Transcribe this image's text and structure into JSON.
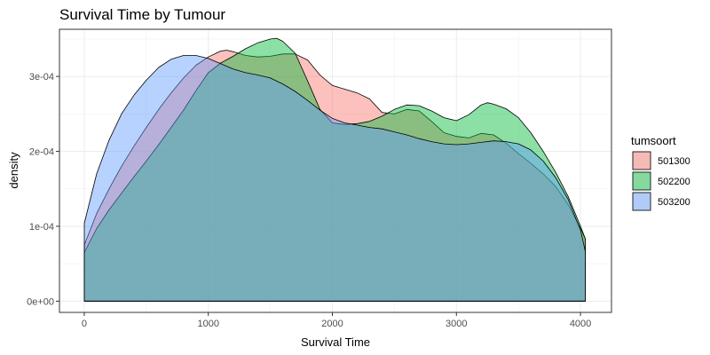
{
  "chart_data": {
    "type": "area",
    "title": "Survival Time by Tumour",
    "xlabel": "Survival Time",
    "ylabel": "density",
    "xlim": [
      -200,
      4250
    ],
    "ylim": [
      -1.5e-05,
      0.000363
    ],
    "x_ticks": [
      0,
      1000,
      2000,
      3000,
      4000
    ],
    "x_tick_labels": [
      "0",
      "1000",
      "2000",
      "3000",
      "4000"
    ],
    "y_ticks": [
      0,
      0.0001,
      0.0002,
      0.0003
    ],
    "y_tick_labels": [
      "0e+00",
      "1e-04",
      "2e-04",
      "3e-04"
    ],
    "grid": true,
    "legend": {
      "title": "tumsoort",
      "position": "right",
      "entries": [
        "501300",
        "502200",
        "503200"
      ]
    },
    "series": [
      {
        "name": "501300",
        "color": "#F8766D",
        "x": [
          0,
          100,
          200,
          300,
          400,
          500,
          600,
          700,
          800,
          900,
          1000,
          1100,
          1150,
          1200,
          1300,
          1400,
          1500,
          1600,
          1700,
          1800,
          1900,
          2000,
          2100,
          2200,
          2300,
          2400,
          2500,
          2600,
          2700,
          2800,
          2900,
          3000,
          3100,
          3200,
          3300,
          3400,
          3500,
          3600,
          3700,
          3800,
          3900,
          4000,
          4040
        ],
        "y": [
          7.5e-05,
          0.000117,
          0.00015,
          0.00018,
          0.000207,
          0.000232,
          0.000256,
          0.000278,
          0.000298,
          0.000315,
          0.000326,
          0.000334,
          0.000335,
          0.000333,
          0.000328,
          0.000326,
          0.000327,
          0.00033,
          0.00033,
          0.000322,
          0.000302,
          0.000288,
          0.000283,
          0.000278,
          0.00027,
          0.000252,
          0.00025,
          0.000256,
          0.000254,
          0.00024,
          0.000225,
          0.00022,
          0.000218,
          0.000224,
          0.000222,
          0.000211,
          0.000197,
          0.000184,
          0.00017,
          0.000153,
          0.000129,
          9.7e-05,
          8.3e-05
        ]
      },
      {
        "name": "502200",
        "color": "#00BA38",
        "x": [
          0,
          100,
          200,
          300,
          400,
          500,
          600,
          700,
          800,
          900,
          1000,
          1100,
          1200,
          1300,
          1400,
          1500,
          1550,
          1600,
          1700,
          1800,
          1900,
          2000,
          2100,
          2200,
          2300,
          2400,
          2500,
          2600,
          2700,
          2800,
          2900,
          3000,
          3100,
          3200,
          3250,
          3300,
          3400,
          3500,
          3600,
          3700,
          3800,
          3900,
          4000,
          4040
        ],
        "y": [
          6.5e-05,
          9.7e-05,
          0.000122,
          0.000144,
          0.000166,
          0.000187,
          0.000209,
          0.000232,
          0.000255,
          0.000281,
          0.000305,
          0.000318,
          0.000327,
          0.000337,
          0.000345,
          0.00035,
          0.000351,
          0.000347,
          0.000331,
          0.000294,
          0.000256,
          0.000238,
          0.000236,
          0.000237,
          0.00024,
          0.000247,
          0.000256,
          0.000262,
          0.000261,
          0.000254,
          0.000245,
          0.000241,
          0.000249,
          0.000262,
          0.000265,
          0.000263,
          0.000257,
          0.000245,
          0.000225,
          0.0002,
          0.000172,
          0.00014,
          0.0001,
          8.3e-05
        ]
      },
      {
        "name": "503200",
        "color": "#619CFF",
        "x": [
          0,
          100,
          200,
          300,
          400,
          500,
          600,
          700,
          800,
          900,
          1000,
          1100,
          1200,
          1300,
          1400,
          1500,
          1600,
          1700,
          1800,
          1900,
          2000,
          2100,
          2200,
          2300,
          2400,
          2500,
          2600,
          2700,
          2800,
          2900,
          3000,
          3100,
          3200,
          3300,
          3400,
          3500,
          3600,
          3700,
          3800,
          3900,
          4000,
          4040
        ],
        "y": [
          0.000104,
          0.00017,
          0.000215,
          0.00025,
          0.000275,
          0.000295,
          0.000312,
          0.000323,
          0.000328,
          0.000328,
          0.000324,
          0.000317,
          0.00031,
          0.000305,
          0.000302,
          0.000298,
          0.00029,
          0.00028,
          0.000268,
          0.000255,
          0.000244,
          0.000238,
          0.000235,
          0.000232,
          0.00023,
          0.000226,
          0.000222,
          0.000217,
          0.000213,
          0.00021,
          0.000209,
          0.00021,
          0.000212,
          0.000214,
          0.000213,
          0.00021,
          0.000202,
          0.000187,
          0.000165,
          0.000136,
          9.5e-05,
          6.6e-05
        ]
      }
    ]
  }
}
